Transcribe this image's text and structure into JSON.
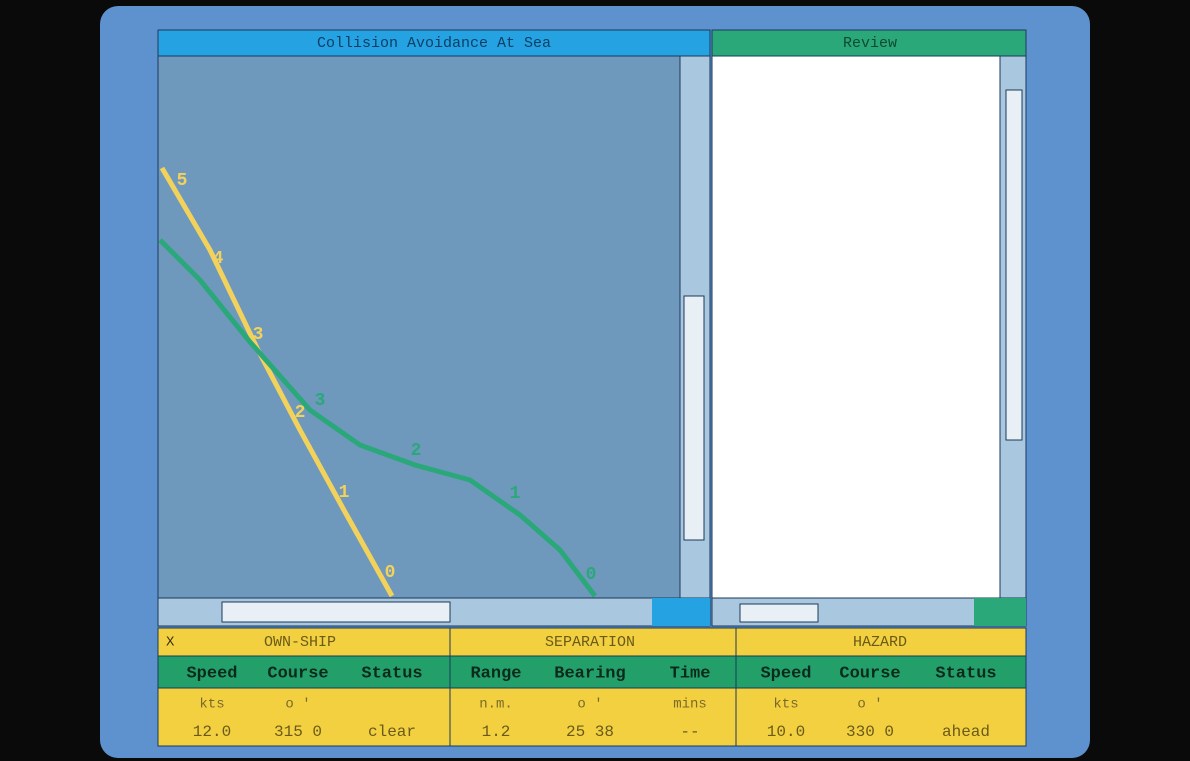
{
  "windows": {
    "main": {
      "title": "Collision Avoidance At Sea"
    },
    "review": {
      "title": "Review"
    }
  },
  "plot": {
    "own_track_labels": [
      "5",
      "4",
      "3",
      "2",
      "1",
      "0"
    ],
    "hazard_track_labels": [
      "3",
      "2",
      "1",
      "0"
    ]
  },
  "table": {
    "corner": "X",
    "groups": [
      "OWN-SHIP",
      "SEPARATION",
      "HAZARD"
    ],
    "headers": [
      "Speed",
      "Course",
      "Status",
      "Range",
      "Bearing",
      "Time",
      "Speed",
      "Course",
      "Status"
    ],
    "units": [
      "kts",
      "o '",
      null,
      "n.m.",
      "o '",
      "mins",
      "kts",
      "o '",
      null
    ],
    "values": [
      "12.0",
      "315 0",
      "clear",
      "1.2",
      "25 38",
      "--",
      "10.0",
      "330 0",
      "ahead"
    ]
  }
}
